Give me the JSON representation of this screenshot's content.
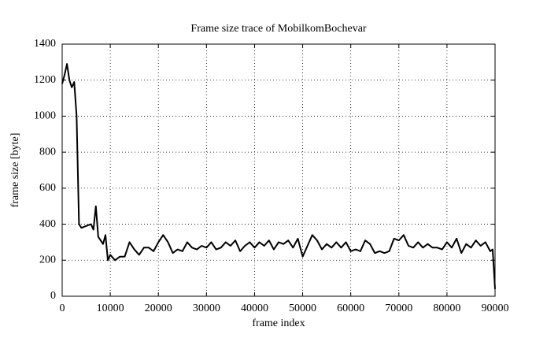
{
  "chart_data": {
    "type": "line",
    "title": "Frame size trace of MobilkomBochevar",
    "xlabel": "frame index",
    "ylabel": "frame size [byte]",
    "color": "#000000",
    "grid": true,
    "x": [
      0,
      500,
      1000,
      1500,
      2000,
      2500,
      3000,
      3500,
      4000,
      5000,
      6000,
      6500,
      7000,
      7500,
      8500,
      9000,
      9500,
      10000,
      11000,
      12000,
      13000,
      14000,
      15000,
      16000,
      17000,
      18000,
      19000,
      20000,
      21000,
      22000,
      23000,
      24000,
      25000,
      26000,
      27000,
      28000,
      29000,
      30000,
      31000,
      32000,
      33000,
      34000,
      35000,
      36000,
      37000,
      38000,
      39000,
      40000,
      41000,
      42000,
      43000,
      44000,
      45000,
      46000,
      47000,
      48000,
      49000,
      50000,
      51000,
      52000,
      53000,
      54000,
      55000,
      56000,
      57000,
      58000,
      59000,
      60000,
      61000,
      62000,
      63000,
      64000,
      65000,
      66000,
      67000,
      68000,
      69000,
      70000,
      71000,
      72000,
      73000,
      74000,
      75000,
      76000,
      77000,
      78000,
      79000,
      80000,
      81000,
      82000,
      83000,
      84000,
      85000,
      86000,
      87000,
      88000,
      89000,
      89500,
      90000
    ],
    "values": [
      1180,
      1230,
      1290,
      1200,
      1160,
      1190,
      1000,
      400,
      380,
      390,
      400,
      370,
      500,
      330,
      290,
      340,
      200,
      230,
      200,
      220,
      220,
      300,
      260,
      230,
      270,
      270,
      250,
      300,
      340,
      300,
      240,
      260,
      250,
      300,
      270,
      260,
      280,
      270,
      300,
      260,
      270,
      300,
      280,
      310,
      250,
      280,
      300,
      270,
      300,
      280,
      310,
      260,
      300,
      290,
      310,
      270,
      320,
      220,
      280,
      340,
      310,
      260,
      290,
      270,
      300,
      270,
      300,
      250,
      260,
      250,
      310,
      290,
      240,
      250,
      240,
      250,
      320,
      310,
      340,
      280,
      270,
      300,
      270,
      290,
      270,
      270,
      260,
      300,
      270,
      320,
      240,
      290,
      270,
      310,
      280,
      300,
      250,
      260,
      40
    ],
    "xlim": [
      0,
      90000
    ],
    "ylim": [
      0,
      1400
    ],
    "xticks": [
      0,
      10000,
      20000,
      30000,
      40000,
      50000,
      60000,
      70000,
      80000,
      90000
    ],
    "yticks": [
      0,
      200,
      400,
      600,
      800,
      1000,
      1200,
      1400
    ]
  }
}
